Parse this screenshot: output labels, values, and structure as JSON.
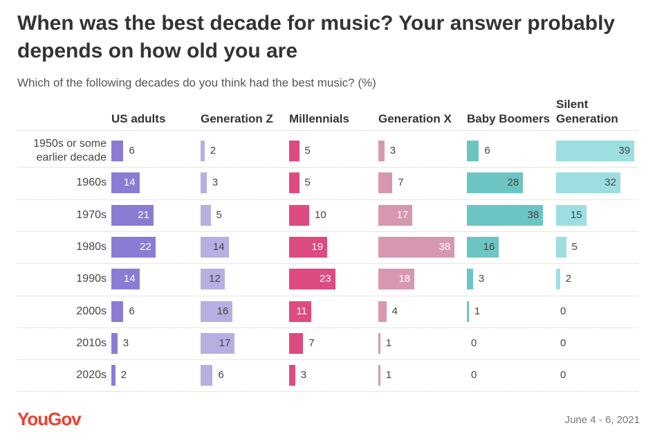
{
  "title": "When was the best decade for music? Your answer probably depends on how old you are",
  "subtitle": "Which of the following decades do you think had the best music? (%)",
  "footer": {
    "logo": "YouGov",
    "date": "June 4 - 6, 2021"
  },
  "chart_data": {
    "type": "bar",
    "orientation": "horizontal",
    "categories": [
      "1950s or some earlier decade",
      "1960s",
      "1970s",
      "1980s",
      "1990s",
      "2000s",
      "2010s",
      "2020s"
    ],
    "series": [
      {
        "name": "US adults",
        "color": "#8a7cd3",
        "text": "#ffffff",
        "values": [
          6,
          14,
          21,
          22,
          14,
          6,
          3,
          2
        ]
      },
      {
        "name": "Generation Z",
        "color": "#b8aee2",
        "text": "#444444",
        "values": [
          2,
          3,
          5,
          14,
          12,
          16,
          17,
          6
        ]
      },
      {
        "name": "Millennials",
        "color": "#dd4b80",
        "text": "#ffffff",
        "values": [
          5,
          5,
          10,
          19,
          23,
          11,
          7,
          3
        ]
      },
      {
        "name": "Generation X",
        "color": "#d698b0",
        "text": "#ffffff",
        "values": [
          3,
          7,
          17,
          38,
          18,
          4,
          1,
          1
        ]
      },
      {
        "name": "Baby Boomers",
        "color": "#6dc5c3",
        "text": "#444444",
        "values": [
          6,
          28,
          38,
          16,
          3,
          1,
          0,
          0
        ]
      },
      {
        "name": "Silent Generation",
        "color": "#9ddfe0",
        "text": "#444444",
        "values": [
          39,
          32,
          15,
          5,
          2,
          0,
          0,
          0
        ]
      }
    ],
    "unit": "%",
    "xlim": [
      0,
      40
    ]
  }
}
